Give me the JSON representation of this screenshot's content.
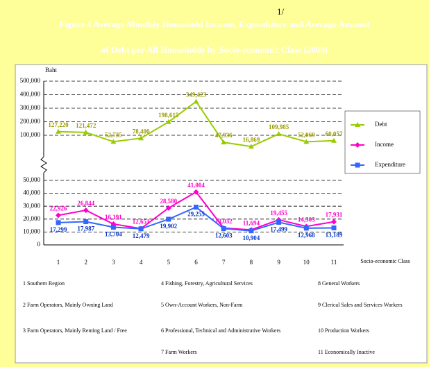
{
  "chart_data": {
    "type": "line",
    "title_lines": [
      "Figure  4   Average Monthly Household Income, Expenditure and Average Amount",
      "of Debt  per All Households by Socio-economic Class (2009)"
    ],
    "footnote_mark": "1/",
    "y_axis_label": "Baht",
    "x_axis_label": "Socio-economic Class",
    "categories": [
      "1",
      "2",
      "3",
      "4",
      "5",
      "6",
      "7",
      "8",
      "9",
      "10",
      "11"
    ],
    "ylim": [
      0,
      50000
    ],
    "yticks": [
      0,
      {
        "value": 10000,
        "label": "10,000"
      },
      {
        "value": 20000,
        "label": "20,000"
      },
      {
        "value": 30000,
        "label": "30,000"
      },
      {
        "value": 40000,
        "label": "40,000"
      },
      {
        "value": 50000,
        "label": "50,000"
      }
    ],
    "y2lim": [
      0,
      500000
    ],
    "y2ticks": [
      {
        "value": 100000,
        "label": "100,000"
      },
      {
        "value": 200000,
        "label": "200,000"
      },
      {
        "value": 300000,
        "label": "300,000"
      },
      {
        "value": 400000,
        "label": "400,000"
      },
      {
        "value": 500000,
        "label": "500,000"
      }
    ],
    "grid": true,
    "legend": "right",
    "series": [
      {
        "name": "Debt",
        "color": "#99cc00",
        "label_color": "#999900",
        "marker": "triangle",
        "axis": "y2",
        "values": [
          127220,
          121472,
          52735,
          78400,
          198615,
          349423,
          47936,
          16869,
          109985,
          52069,
          60057
        ],
        "value_labels": [
          "127,220",
          "121,472",
          "52,735",
          "78,400",
          "198,615",
          "349,423",
          "47,936",
          "16,869",
          "109,985",
          "52,069",
          "60,057"
        ]
      },
      {
        "name": "Income",
        "color": "#ff00cc",
        "label_color": "#ff00cc",
        "marker": "diamond",
        "values": [
          22926,
          26844,
          16191,
          12651,
          28580,
          41004,
          13032,
          11694,
          19455,
          14303,
          17931
        ],
        "value_labels": [
          "22,926",
          "26,844",
          "16,191",
          "12,651",
          "28,580",
          "41,004",
          "13,032",
          "11,694",
          "19,455",
          "14,303",
          "17,931"
        ]
      },
      {
        "name": "Expenditure",
        "color": "#3366ff",
        "label_color": "#0033cc",
        "marker": "square",
        "values": [
          17299,
          17987,
          13704,
          12479,
          19902,
          29255,
          12603,
          10904,
          17499,
          12968,
          13189
        ],
        "value_labels": [
          "17,299",
          "17,987",
          "13,704",
          "12,479",
          "19,902",
          "29,255",
          "12,603",
          "10,904",
          "17,499",
          "12,968",
          "13,189"
        ]
      }
    ],
    "notes": [
      "1 Southern Region",
      "2 Farm Operators, Mainly Owning Land",
      "3 Farm Operators, Mainly Renting Land / Free",
      "4 Fishing, Forestry, Agricultural Services",
      "5 Own-Account Workers, Non-Farm",
      "6 Professional, Technical and Administrative Workers",
      "7 Farm Workers",
      "8 General Workers",
      "9 Clerical Sales and Services Workers",
      "10 Production Workers",
      "11 Economically Inactive"
    ]
  }
}
